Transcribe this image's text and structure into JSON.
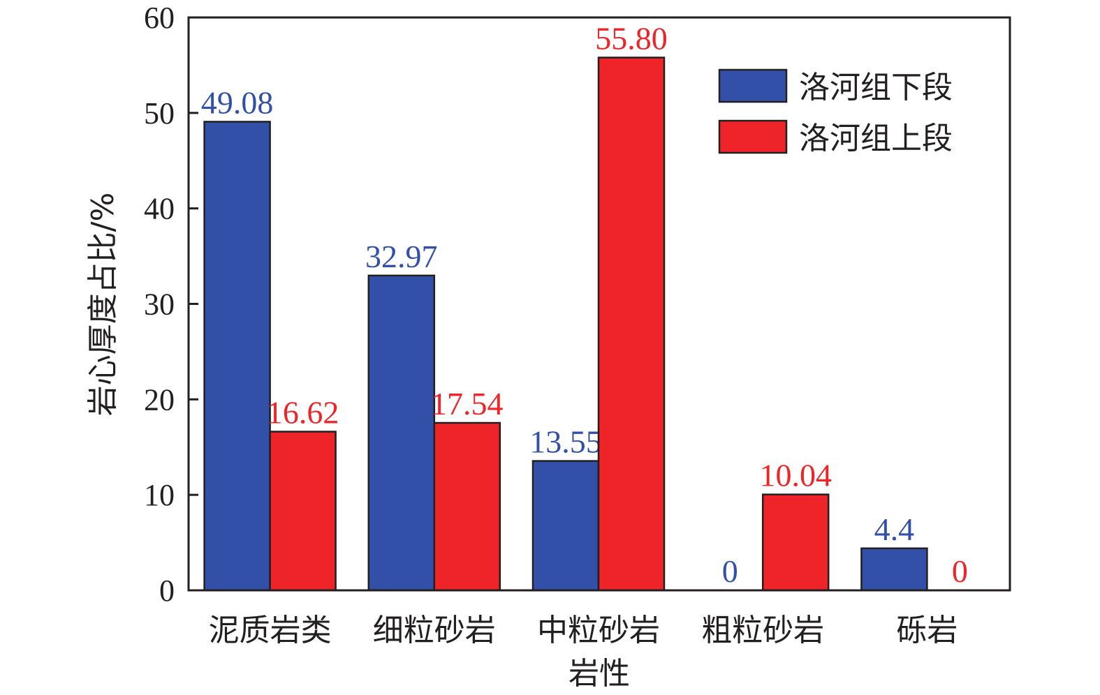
{
  "chart_data": {
    "type": "bar",
    "categories": [
      "泥质岩类",
      "细粒砂岩",
      "中粒砂岩",
      "粗粒砂岩",
      "砾岩"
    ],
    "series": [
      {
        "name": "洛河组下段",
        "color": "#3350a8",
        "values": [
          49.08,
          32.97,
          13.55,
          0,
          4.4
        ],
        "labels": [
          "49.08",
          "32.97",
          "13.55",
          "0",
          "4.4"
        ]
      },
      {
        "name": "洛河组上段",
        "color": "#ee2428",
        "values": [
          16.62,
          17.54,
          55.8,
          10.04,
          0
        ],
        "labels": [
          "16.62",
          "17.54",
          "55.80",
          "10.04",
          "0"
        ]
      }
    ],
    "xlabel": "岩性",
    "ylabel": "岩心厚度占比/%",
    "ylim": [
      0,
      60
    ],
    "yticks": [
      "0",
      "10",
      "20",
      "30",
      "40",
      "50",
      "60"
    ],
    "legend_position": "top-right",
    "grid": false
  }
}
